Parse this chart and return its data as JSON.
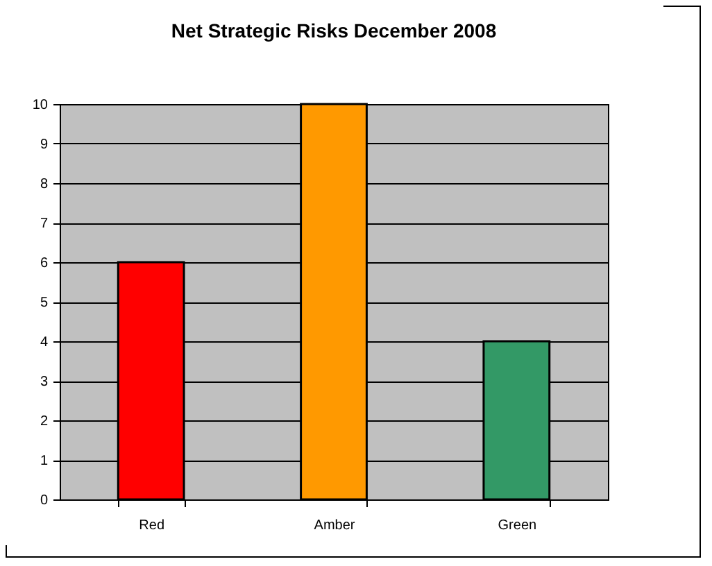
{
  "chart_data": {
    "type": "bar",
    "title": "Net Strategic Risks December 2008",
    "categories": [
      "Red",
      "Amber",
      "Green"
    ],
    "values": [
      6,
      10,
      4
    ],
    "colors": [
      "#ff0000",
      "#ff9900",
      "#339966"
    ],
    "ylim": [
      0,
      10
    ],
    "yticks": [
      0,
      1,
      2,
      3,
      4,
      5,
      6,
      7,
      8,
      9,
      10
    ],
    "grid": "y",
    "legend": false
  }
}
